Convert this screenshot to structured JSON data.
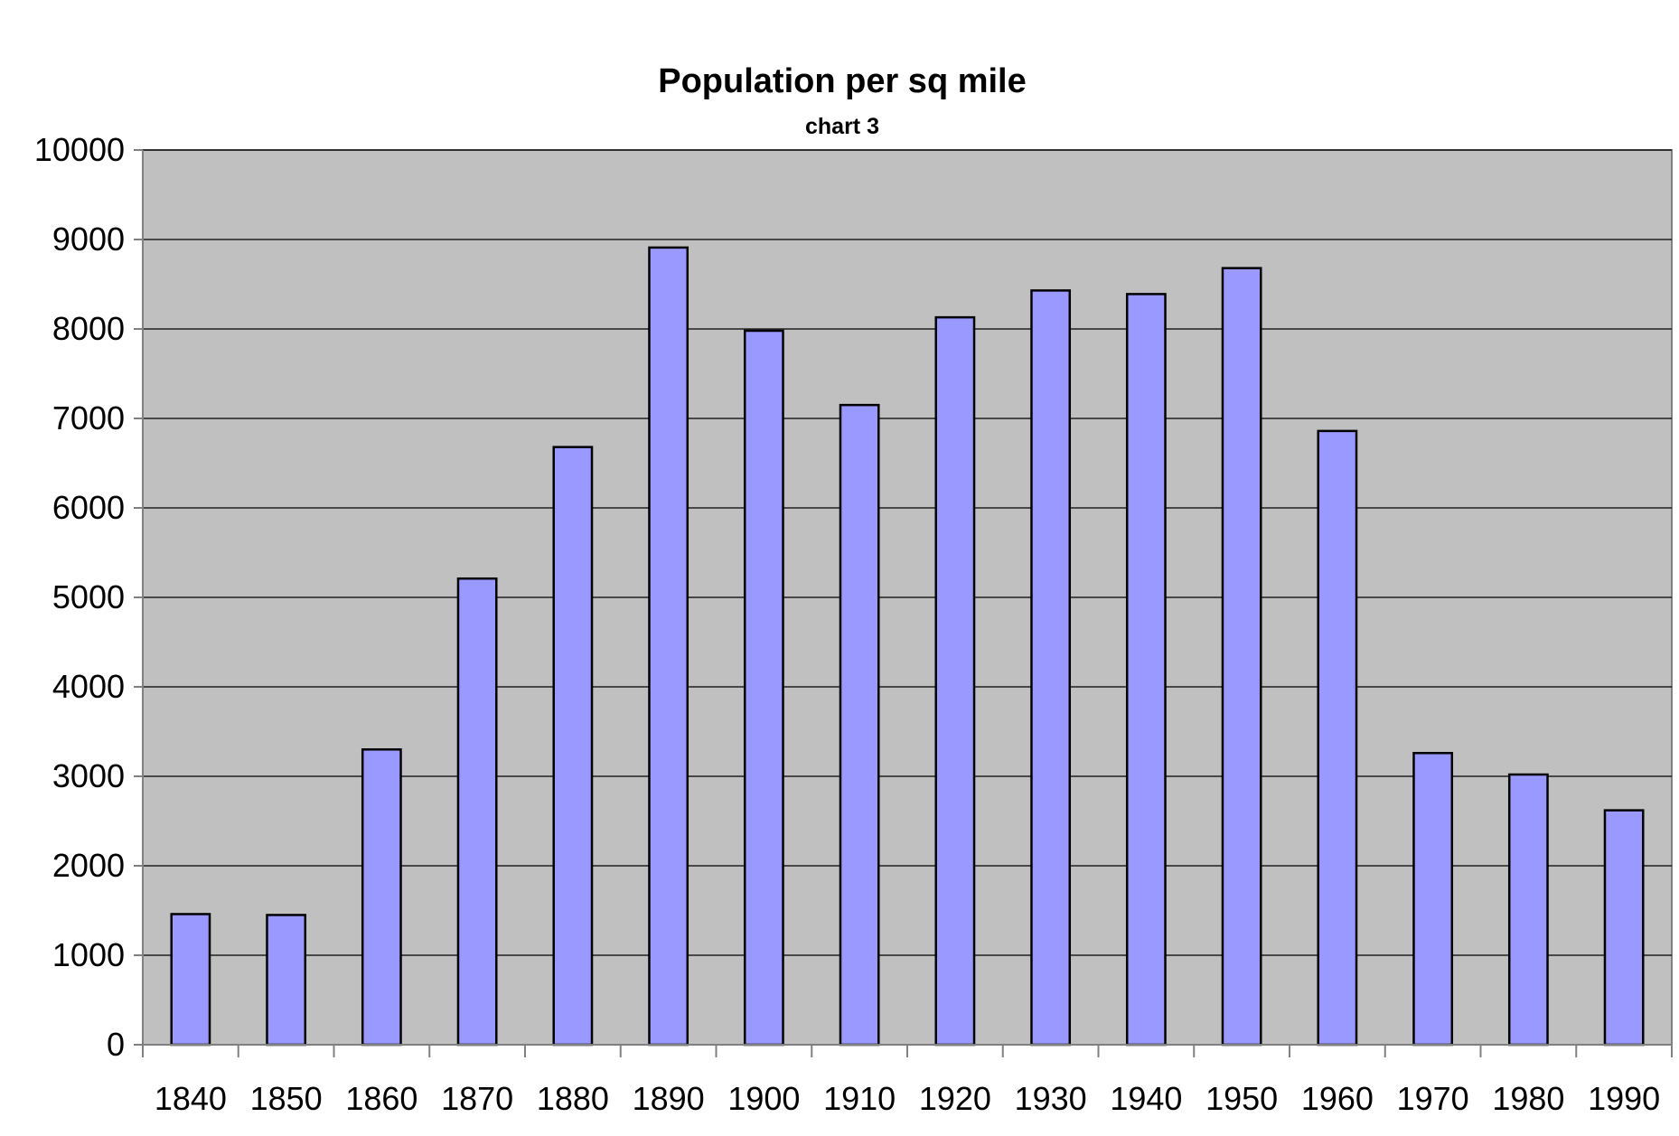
{
  "chart_data": {
    "type": "bar",
    "title": "Population per sq mile",
    "subtitle": "chart 3",
    "xlabel": "",
    "ylabel": "",
    "categories": [
      "1840",
      "1850",
      "1860",
      "1870",
      "1880",
      "1890",
      "1900",
      "1910",
      "1920",
      "1930",
      "1940",
      "1950",
      "1960",
      "1970",
      "1980",
      "1990"
    ],
    "values": [
      1460,
      1450,
      3300,
      5210,
      6680,
      8910,
      7980,
      7150,
      8130,
      8430,
      8390,
      8680,
      6860,
      3260,
      3020,
      2620
    ],
    "ylim": [
      0,
      10000
    ],
    "yticks": [
      "0",
      "1000",
      "2000",
      "3000",
      "4000",
      "5000",
      "6000",
      "7000",
      "8000",
      "9000",
      "10000"
    ],
    "grid": true,
    "legend": "none",
    "colors": {
      "plot_background": "#c0c0c0",
      "bar_fill": "#9999ff",
      "bar_stroke": "#000000",
      "gridline": "#000000",
      "axis": "#808080"
    }
  }
}
